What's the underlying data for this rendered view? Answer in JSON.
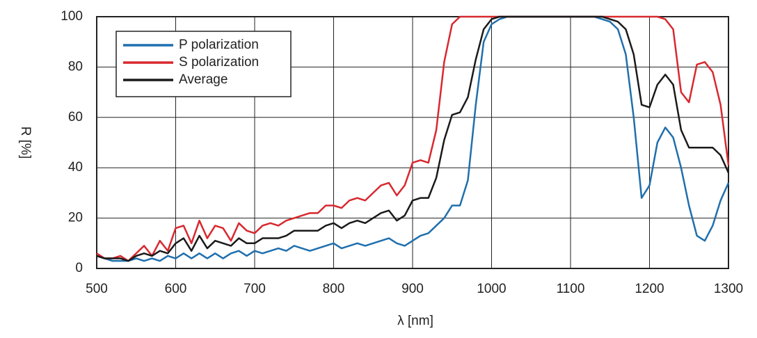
{
  "chart_data": {
    "type": "line",
    "x_label": "λ [nm]",
    "y_label": "R [%]",
    "x": [
      500,
      510,
      520,
      530,
      540,
      550,
      560,
      570,
      580,
      590,
      600,
      610,
      620,
      630,
      640,
      650,
      660,
      670,
      680,
      690,
      700,
      710,
      720,
      730,
      740,
      750,
      760,
      770,
      780,
      790,
      800,
      810,
      820,
      830,
      840,
      850,
      860,
      870,
      880,
      890,
      900,
      910,
      920,
      930,
      940,
      950,
      960,
      970,
      980,
      990,
      1000,
      1010,
      1020,
      1030,
      1040,
      1050,
      1060,
      1070,
      1080,
      1090,
      1100,
      1110,
      1120,
      1130,
      1140,
      1150,
      1160,
      1170,
      1180,
      1190,
      1200,
      1210,
      1220,
      1230,
      1240,
      1250,
      1260,
      1270,
      1280,
      1290,
      1300
    ],
    "series": [
      {
        "name": "P polarization",
        "color": "#1f6fad",
        "values": [
          5,
          4,
          3,
          3,
          3,
          4,
          3,
          4,
          3,
          5,
          4,
          6,
          4,
          6,
          4,
          6,
          4,
          6,
          7,
          5,
          7,
          6,
          7,
          8,
          7,
          9,
          8,
          7,
          8,
          9,
          10,
          8,
          9,
          10,
          9,
          10,
          11,
          12,
          10,
          9,
          11,
          13,
          14,
          17,
          20,
          25,
          25,
          35,
          65,
          90,
          97,
          99,
          100,
          100,
          100,
          100,
          100,
          100,
          100,
          100,
          100,
          100,
          100,
          100,
          99,
          98,
          95,
          85,
          60,
          28,
          33,
          50,
          56,
          52,
          40,
          25,
          13,
          11,
          17,
          27,
          34
        ]
      },
      {
        "name": "S polarization",
        "color": "#d8282f",
        "values": [
          6,
          4,
          4,
          5,
          3,
          6,
          9,
          5,
          11,
          7,
          16,
          17,
          10,
          19,
          12,
          17,
          16,
          11,
          18,
          15,
          14,
          17,
          18,
          17,
          19,
          20,
          21,
          22,
          22,
          25,
          25,
          24,
          27,
          28,
          27,
          30,
          33,
          34,
          29,
          33,
          42,
          43,
          42,
          55,
          82,
          97,
          100,
          100,
          100,
          100,
          100,
          100,
          100,
          100,
          100,
          100,
          100,
          100,
          100,
          100,
          100,
          100,
          100,
          100,
          100,
          100,
          100,
          100,
          100,
          100,
          100,
          100,
          99,
          95,
          70,
          66,
          81,
          82,
          78,
          65,
          41
        ]
      },
      {
        "name": "Average",
        "color": "#1a1a1a",
        "values": [
          5,
          4,
          4,
          4,
          3,
          5,
          6,
          5,
          7,
          6,
          10,
          12,
          7,
          13,
          8,
          11,
          10,
          9,
          12,
          10,
          10,
          12,
          12,
          12,
          13,
          15,
          15,
          15,
          15,
          17,
          18,
          16,
          18,
          19,
          18,
          20,
          22,
          23,
          19,
          21,
          27,
          28,
          28,
          36,
          51,
          61,
          62,
          68,
          83,
          95,
          99,
          100,
          100,
          100,
          100,
          100,
          100,
          100,
          100,
          100,
          100,
          100,
          100,
          100,
          100,
          99,
          98,
          95,
          85,
          65,
          64,
          73,
          77,
          73,
          55,
          48,
          48,
          48,
          48,
          45,
          38
        ]
      }
    ],
    "xlim": [
      500,
      1300
    ],
    "xticks": [
      500,
      600,
      700,
      800,
      900,
      1000,
      1100,
      1200,
      1300
    ],
    "ylim": [
      0,
      100
    ],
    "yticks": [
      0,
      20,
      40,
      60,
      80,
      100
    ],
    "grid": true,
    "legend": "upper-left"
  }
}
